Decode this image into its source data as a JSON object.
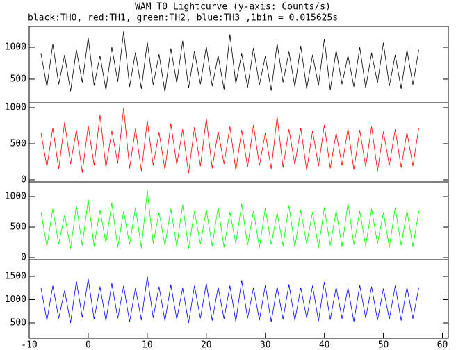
{
  "chart_data": [
    {
      "type": "line",
      "title": "WAM T0 Lightcurve (y-axis: Counts/s)",
      "subtitle": "black:TH0, red:TH1, green:TH2, blue:TH3 ,1bin = 0.015625s",
      "x": [
        -8,
        -7,
        -6,
        -5,
        -4,
        -3,
        -2,
        -1,
        0,
        1,
        2,
        3,
        4,
        5,
        6,
        7,
        8,
        9,
        10,
        11,
        12,
        13,
        14,
        15,
        16,
        17,
        18,
        19,
        20,
        21,
        22,
        23,
        24,
        25,
        26,
        27,
        28,
        29,
        30,
        31,
        32,
        33,
        34,
        35,
        36,
        37,
        38,
        39,
        40,
        41,
        42,
        43,
        44,
        45,
        46,
        47,
        48,
        49,
        50,
        51,
        52,
        53,
        54,
        55,
        56
      ],
      "series": [
        {
          "name": "TH0",
          "color": "#000000",
          "values": [
            900,
            380,
            1050,
            420,
            880,
            310,
            960,
            450,
            1150,
            400,
            870,
            330,
            1000,
            460,
            1250,
            380,
            920,
            350,
            1080,
            410,
            890,
            300,
            980,
            440,
            1100,
            360,
            940,
            420,
            1010,
            390,
            870,
            340,
            1200,
            430,
            900,
            370,
            990,
            410,
            860,
            320,
            1060,
            450,
            930,
            380,
            1020,
            350,
            880,
            400,
            1130,
            330,
            950,
            420,
            870,
            380,
            1000,
            360,
            910,
            440,
            1070,
            390,
            880,
            350,
            960,
            410,
            960
          ]
        }
      ],
      "xlim": [
        -10,
        61
      ],
      "ylim": [
        130,
        1326
      ],
      "yticks": [
        500,
        1000
      ]
    },
    {
      "type": "line",
      "x": [
        -8,
        -7,
        -6,
        -5,
        -4,
        -3,
        -2,
        -1,
        0,
        1,
        2,
        3,
        4,
        5,
        6,
        7,
        8,
        9,
        10,
        11,
        12,
        13,
        14,
        15,
        16,
        17,
        18,
        19,
        20,
        21,
        22,
        23,
        24,
        25,
        26,
        27,
        28,
        29,
        30,
        31,
        32,
        33,
        34,
        35,
        36,
        37,
        38,
        39,
        40,
        41,
        42,
        43,
        44,
        45,
        46,
        47,
        48,
        49,
        50,
        51,
        52,
        53,
        54,
        55,
        56
      ],
      "series": [
        {
          "name": "TH1",
          "color": "#ff0000",
          "values": [
            650,
            180,
            720,
            150,
            800,
            220,
            690,
            100,
            750,
            200,
            900,
            170,
            680,
            230,
            1000,
            160,
            710,
            120,
            820,
            200,
            660,
            140,
            780,
            210,
            700,
            90,
            730,
            190,
            850,
            160,
            670,
            220,
            740,
            130,
            690,
            180,
            760,
            200,
            650,
            150,
            880,
            170,
            700,
            210,
            720,
            130,
            680,
            190,
            760,
            160,
            650,
            200,
            710,
            140,
            690,
            180,
            740,
            120,
            670,
            200,
            700,
            170,
            660,
            190,
            720
          ]
        }
      ],
      "xlim": [
        -10,
        61
      ],
      "ylim": [
        -29,
        1067
      ],
      "yticks": [
        0,
        500,
        1000
      ]
    },
    {
      "type": "line",
      "x": [
        -8,
        -7,
        -6,
        -5,
        -4,
        -3,
        -2,
        -1,
        0,
        1,
        2,
        3,
        4,
        5,
        6,
        7,
        8,
        9,
        10,
        11,
        12,
        13,
        14,
        15,
        16,
        17,
        18,
        19,
        20,
        21,
        22,
        23,
        24,
        25,
        26,
        27,
        28,
        29,
        30,
        31,
        32,
        33,
        34,
        35,
        36,
        37,
        38,
        39,
        40,
        41,
        42,
        43,
        44,
        45,
        46,
        47,
        48,
        49,
        50,
        51,
        52,
        53,
        54,
        55,
        56
      ],
      "series": [
        {
          "name": "TH2",
          "color": "#00ff00",
          "values": [
            750,
            180,
            800,
            220,
            700,
            150,
            850,
            200,
            950,
            190,
            780,
            240,
            900,
            170,
            760,
            210,
            820,
            160,
            1100,
            230,
            740,
            200,
            800,
            180,
            870,
            150,
            760,
            220,
            790,
            190,
            830,
            170,
            750,
            230,
            880,
            200,
            770,
            160,
            810,
            210,
            740,
            190,
            860,
            170,
            780,
            220,
            750,
            160,
            820,
            200,
            770,
            180,
            900,
            210,
            760,
            190,
            800,
            230,
            740,
            170,
            820,
            200,
            770,
            180,
            760
          ]
        }
      ],
      "xlim": [
        -10,
        61
      ],
      "ylim": [
        -34,
        1239
      ],
      "yticks": [
        0,
        500,
        1000
      ]
    },
    {
      "type": "line",
      "x": [
        -8,
        -7,
        -6,
        -5,
        -4,
        -3,
        -2,
        -1,
        0,
        1,
        2,
        3,
        4,
        5,
        6,
        7,
        8,
        9,
        10,
        11,
        12,
        13,
        14,
        15,
        16,
        17,
        18,
        19,
        20,
        21,
        22,
        23,
        24,
        25,
        26,
        27,
        28,
        29,
        30,
        31,
        32,
        33,
        34,
        35,
        36,
        37,
        38,
        39,
        40,
        41,
        42,
        43,
        44,
        45,
        46,
        47,
        48,
        49,
        50,
        51,
        52,
        53,
        54,
        55,
        56
      ],
      "series": [
        {
          "name": "TH3",
          "color": "#0000ff",
          "values": [
            1250,
            550,
            1300,
            600,
            1200,
            500,
            1400,
            620,
            1450,
            580,
            1280,
            540,
            1350,
            600,
            1300,
            520,
            1250,
            560,
            1500,
            610,
            1280,
            540,
            1320,
            580,
            1250,
            500,
            1300,
            600,
            1350,
            550,
            1270,
            590,
            1300,
            530,
            1420,
            600,
            1260,
            560,
            1310,
            520,
            1280,
            580,
            1330,
            550,
            1260,
            600,
            1300,
            540,
            1380,
            570,
            1270,
            590,
            1250,
            530,
            1310,
            600,
            1280,
            560,
            1240,
            580,
            1300,
            550,
            1270,
            590,
            1260
          ]
        }
      ],
      "xlim": [
        -10,
        61
      ],
      "ylim": [
        172,
        1858
      ],
      "yticks": [
        500,
        1000,
        1500
      ],
      "xticks": [
        -10,
        0,
        10,
        20,
        30,
        40,
        50,
        60
      ]
    }
  ]
}
